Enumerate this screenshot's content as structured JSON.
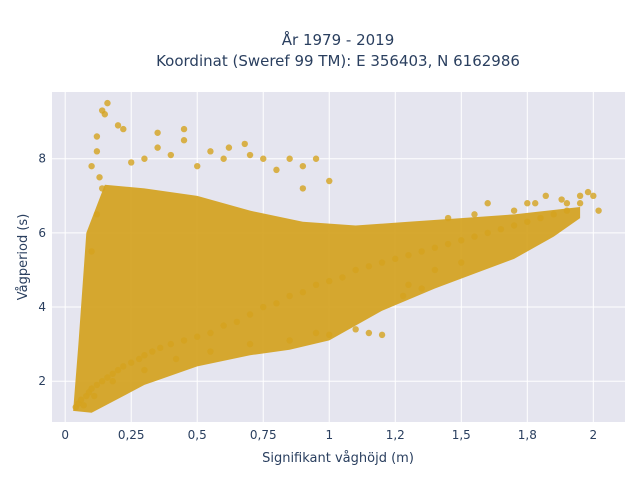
{
  "chart_data": {
    "type": "scatter",
    "title": "År 1979 - 2019",
    "subtitle": "Koordinat (Sweref 99 TM): E 356403, N 6162986",
    "xlabel": "Signifikant våghöjd (m)",
    "ylabel": "Vågperiod (s)",
    "xlim": [
      -0.05,
      2.12
    ],
    "ylim": [
      0.9,
      9.8
    ],
    "x_ticks": [
      0,
      0.25,
      0.5,
      0.75,
      1,
      1.25,
      1.5,
      1.75,
      2
    ],
    "x_tick_labels": [
      "0",
      "0,25",
      "0,5",
      "0,75",
      "1",
      "1,2",
      "1,5",
      "1,8",
      "2"
    ],
    "y_ticks": [
      2,
      4,
      6,
      8
    ],
    "y_tick_labels": [
      "2",
      "4",
      "6",
      "8"
    ],
    "grid": true,
    "marker_color": "#d4a21e",
    "background_color": "#e5e5ef",
    "grid_color": "#ffffff",
    "series": [
      {
        "points": [
          [
            0.04,
            1.3
          ],
          [
            0.05,
            1.4
          ],
          [
            0.06,
            1.5
          ],
          [
            0.07,
            1.35
          ],
          [
            0.08,
            1.6
          ],
          [
            0.09,
            1.7
          ],
          [
            0.1,
            1.8
          ],
          [
            0.11,
            1.6
          ],
          [
            0.12,
            1.9
          ],
          [
            0.14,
            2.0
          ],
          [
            0.16,
            2.1
          ],
          [
            0.18,
            2.2
          ],
          [
            0.2,
            2.3
          ],
          [
            0.22,
            2.4
          ],
          [
            0.25,
            2.5
          ],
          [
            0.28,
            2.6
          ],
          [
            0.3,
            2.7
          ],
          [
            0.33,
            2.8
          ],
          [
            0.36,
            2.9
          ],
          [
            0.4,
            3.0
          ],
          [
            0.45,
            3.1
          ],
          [
            0.5,
            3.2
          ],
          [
            0.55,
            3.3
          ],
          [
            0.6,
            3.5
          ],
          [
            0.65,
            3.6
          ],
          [
            0.7,
            3.8
          ],
          [
            0.75,
            4.0
          ],
          [
            0.8,
            4.1
          ],
          [
            0.85,
            4.3
          ],
          [
            0.9,
            4.4
          ],
          [
            0.95,
            4.6
          ],
          [
            1.0,
            4.7
          ],
          [
            1.05,
            4.8
          ],
          [
            1.1,
            5.0
          ],
          [
            1.15,
            5.1
          ],
          [
            1.2,
            5.2
          ],
          [
            1.25,
            5.3
          ],
          [
            1.3,
            5.4
          ],
          [
            1.35,
            5.5
          ],
          [
            1.4,
            5.6
          ],
          [
            1.45,
            5.7
          ],
          [
            1.5,
            5.8
          ],
          [
            1.55,
            5.9
          ],
          [
            1.6,
            6.0
          ],
          [
            1.65,
            6.1
          ],
          [
            1.7,
            6.2
          ],
          [
            1.75,
            6.3
          ],
          [
            1.8,
            6.4
          ],
          [
            1.85,
            6.5
          ],
          [
            1.9,
            6.6
          ],
          [
            1.95,
            6.8
          ],
          [
            2.0,
            7.0
          ],
          [
            2.02,
            6.6
          ],
          [
            1.98,
            7.1
          ],
          [
            1.88,
            6.9
          ],
          [
            1.78,
            6.8
          ],
          [
            0.1,
            5.5
          ],
          [
            0.12,
            6.5
          ],
          [
            0.14,
            7.2
          ],
          [
            0.1,
            7.8
          ],
          [
            0.12,
            8.6
          ],
          [
            0.14,
            9.3
          ],
          [
            0.16,
            9.5
          ],
          [
            0.15,
            9.2
          ],
          [
            0.2,
            8.9
          ],
          [
            0.22,
            8.8
          ],
          [
            0.12,
            8.2
          ],
          [
            0.13,
            7.5
          ],
          [
            0.25,
            7.9
          ],
          [
            0.3,
            8.0
          ],
          [
            0.35,
            8.3
          ],
          [
            0.4,
            8.1
          ],
          [
            0.45,
            8.5
          ],
          [
            0.5,
            7.8
          ],
          [
            0.55,
            8.2
          ],
          [
            0.6,
            8.0
          ],
          [
            0.62,
            8.3
          ],
          [
            0.68,
            8.4
          ],
          [
            0.7,
            8.1
          ],
          [
            0.75,
            8.0
          ],
          [
            0.8,
            7.7
          ],
          [
            0.85,
            8.0
          ],
          [
            0.9,
            7.8
          ],
          [
            0.95,
            8.0
          ],
          [
            1.0,
            7.4
          ],
          [
            0.9,
            7.2
          ],
          [
            0.35,
            8.7
          ],
          [
            0.45,
            8.8
          ],
          [
            0.18,
            2.0
          ],
          [
            0.3,
            2.3
          ],
          [
            0.42,
            2.6
          ],
          [
            0.55,
            2.8
          ],
          [
            0.7,
            3.0
          ],
          [
            0.85,
            3.1
          ],
          [
            1.0,
            3.25
          ],
          [
            1.15,
            3.3
          ],
          [
            1.2,
            3.25
          ],
          [
            1.1,
            3.4
          ],
          [
            0.95,
            3.3
          ],
          [
            1.3,
            4.6
          ],
          [
            1.28,
            4.3
          ],
          [
            1.35,
            4.5
          ],
          [
            1.4,
            5.0
          ],
          [
            1.5,
            5.2
          ],
          [
            1.55,
            6.5
          ],
          [
            1.45,
            6.4
          ],
          [
            1.6,
            6.8
          ],
          [
            1.7,
            6.6
          ],
          [
            1.75,
            6.8
          ],
          [
            1.82,
            7.0
          ],
          [
            1.9,
            6.8
          ],
          [
            1.95,
            7.0
          ]
        ]
      }
    ]
  }
}
